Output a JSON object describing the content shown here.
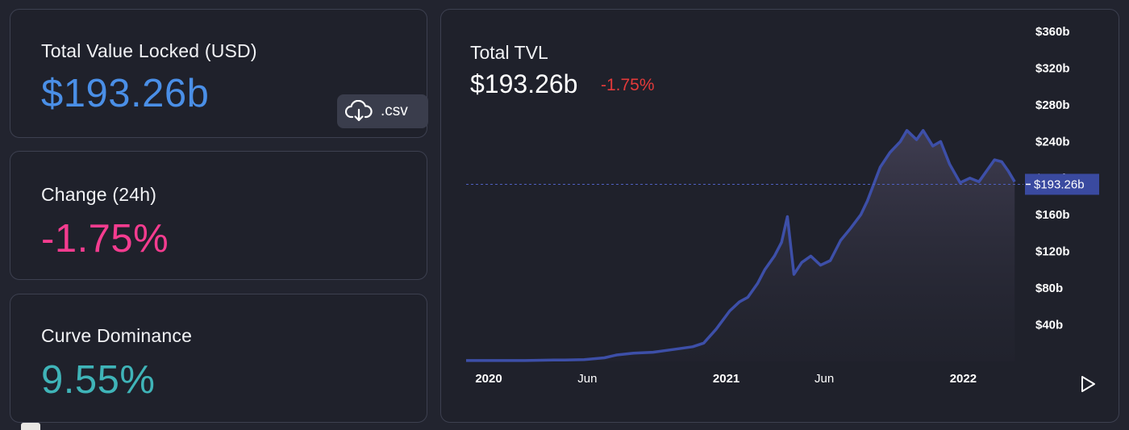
{
  "stats": {
    "tvl": {
      "label": "Total Value Locked (USD)",
      "value": "$193.26b",
      "color": "#4a8fe7"
    },
    "change": {
      "label": "Change (24h)",
      "value": "-1.75%",
      "color": "#f43c8f"
    },
    "dominance": {
      "label": "Curve Dominance",
      "value": "9.55%",
      "color": "#3fb4b8"
    }
  },
  "csv_button": {
    "label": ".csv",
    "icon": "cloud-download-icon"
  },
  "chart": {
    "title": "Total TVL",
    "current_value": "$193.26b",
    "change": "-1.75%",
    "change_color": "#e43a3a",
    "price_tag": "$193.26b",
    "line_color": "#3d4fa8",
    "play_icon": "play-icon"
  },
  "chart_data": {
    "type": "area",
    "title": "Total TVL",
    "x": [
      "2020-01-01",
      "2020-02-15",
      "2020-04-01",
      "2020-05-15",
      "2020-06-01",
      "2020-07-01",
      "2020-08-01",
      "2020-08-20",
      "2020-09-15",
      "2020-10-15",
      "2020-11-15",
      "2020-12-15",
      "2021-01-01",
      "2021-01-20",
      "2021-02-10",
      "2021-02-25",
      "2021-03-10",
      "2021-03-25",
      "2021-04-05",
      "2021-04-20",
      "2021-05-01",
      "2021-05-10",
      "2021-05-20",
      "2021-06-01",
      "2021-06-15",
      "2021-06-30",
      "2021-07-15",
      "2021-07-31",
      "2021-08-15",
      "2021-08-31",
      "2021-09-10",
      "2021-09-30",
      "2021-10-15",
      "2021-10-31",
      "2021-11-10",
      "2021-11-25",
      "2021-12-05",
      "2021-12-20",
      "2022-01-01",
      "2022-01-15",
      "2022-01-31",
      "2022-02-15",
      "2022-03-01",
      "2022-03-15",
      "2022-03-25",
      "2022-04-05",
      "2022-04-15",
      "2022-04-25"
    ],
    "values": [
      1,
      1,
      1,
      1.5,
      1.5,
      2,
      4,
      7,
      9,
      10,
      13,
      16,
      20,
      35,
      55,
      65,
      70,
      85,
      100,
      115,
      130,
      158,
      95,
      108,
      115,
      105,
      110,
      132,
      145,
      160,
      175,
      212,
      228,
      240,
      252,
      242,
      252,
      235,
      240,
      215,
      195,
      200,
      196,
      210,
      220,
      218,
      208,
      196
    ],
    "x_ticks": [
      "2020",
      "Jun",
      "2021",
      "Jun",
      "2022"
    ],
    "y_ticks": [
      "$40b",
      "$80b",
      "$120b",
      "$160b",
      "$200b",
      "$240b",
      "$280b",
      "$320b",
      "$360b"
    ],
    "ylim": [
      0,
      375
    ],
    "current_value": 193.26,
    "grid": false,
    "legend": "none"
  }
}
